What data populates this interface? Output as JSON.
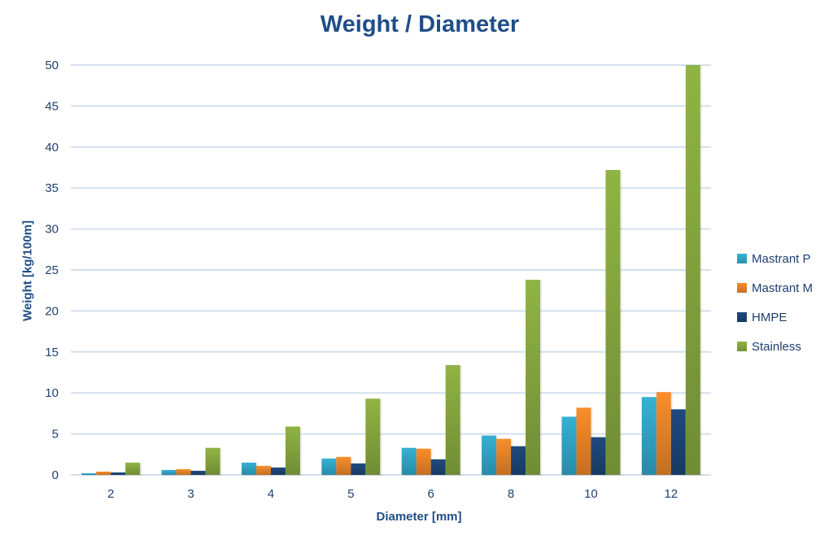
{
  "chart_data": {
    "type": "bar",
    "title": "Weight / Diameter",
    "xlabel": "Diameter [mm]",
    "ylabel": "Weight [kg/100m]",
    "ylim": [
      0,
      50
    ],
    "yticks": [
      0,
      5,
      10,
      15,
      20,
      25,
      30,
      35,
      40,
      45,
      50
    ],
    "grid": true,
    "legend_position": "right",
    "categories": [
      "2",
      "3",
      "4",
      "5",
      "6",
      "8",
      "10",
      "12"
    ],
    "series": [
      {
        "name": "Mastrant P",
        "color": "#35b1d6",
        "values": [
          0.2,
          0.6,
          1.5,
          2.0,
          3.3,
          4.8,
          7.1,
          9.5
        ]
      },
      {
        "name": "Mastrant M",
        "color": "#f98e2b",
        "values": [
          0.4,
          0.7,
          1.1,
          2.2,
          3.2,
          4.4,
          8.2,
          10.1
        ]
      },
      {
        "name": "HMPE",
        "color": "#1f4a7e",
        "values": [
          0.3,
          0.5,
          0.9,
          1.4,
          1.9,
          3.5,
          4.6,
          8.0
        ]
      },
      {
        "name": "Stainless",
        "color": "#8fb444",
        "values": [
          1.5,
          3.3,
          5.9,
          9.3,
          13.4,
          23.8,
          37.2,
          50.0
        ]
      }
    ]
  }
}
